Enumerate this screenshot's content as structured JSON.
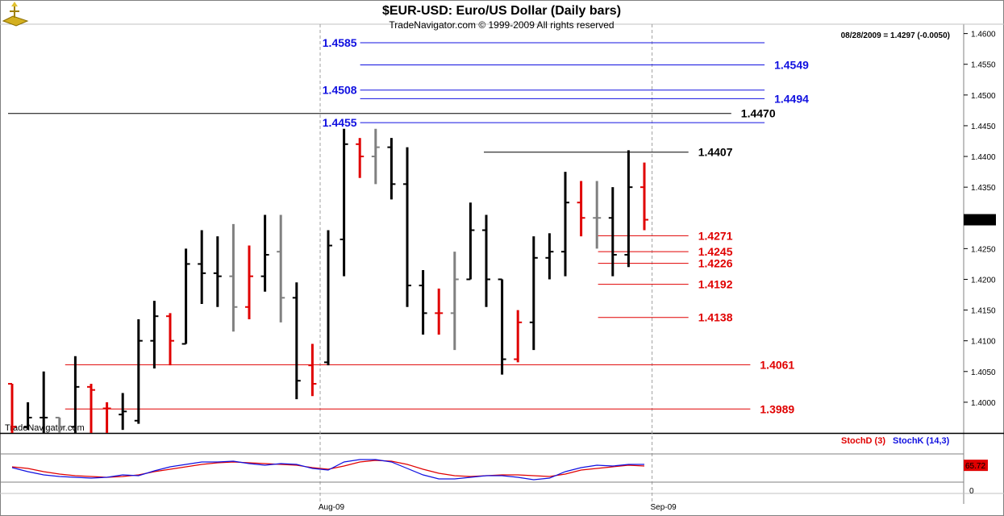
{
  "header": {
    "title": "$EUR-USD:  Euro/US Dollar  (Daily bars)",
    "subtitle": "TradeNavigator.com © 1999-2009 All rights reserved",
    "last_info": "08/28/2009 = 1.4297 (-0.0050)",
    "watermark": "TradeNavigator.com",
    "logo_icon": "gold-logo-icon"
  },
  "colors": {
    "up": "#000000",
    "down": "#e00000",
    "unch": "#808080",
    "blue": "#1010e0",
    "red": "#e00000",
    "black": "#000000",
    "stochD": "#e00000",
    "stochK": "#1010e0"
  },
  "chart_data": {
    "type": "bar",
    "ylim": [
      1.395,
      1.461
    ],
    "yticks": [
      "1.4000",
      "1.4050",
      "1.4100",
      "1.4150",
      "1.4200",
      "1.4250",
      "1.4300",
      "1.4350",
      "1.4400",
      "1.4450",
      "1.4500",
      "1.4550",
      "1.4600"
    ],
    "xticks": [
      {
        "label": "Aug-09",
        "index": 20
      },
      {
        "label": "Sep-09",
        "index": 41
      }
    ],
    "current_price": "1.4297",
    "bars": [
      {
        "o": 1.403,
        "h": 1.403,
        "l": 1.395,
        "c": 1.396,
        "col": "down"
      },
      {
        "o": 1.396,
        "h": 1.4,
        "l": 1.3955,
        "c": 1.3975,
        "col": "up"
      },
      {
        "o": 1.3975,
        "h": 1.405,
        "l": 1.395,
        "c": 1.3975,
        "col": "up"
      },
      {
        "o": 1.3975,
        "h": 1.3975,
        "l": 1.395,
        "c": 1.396,
        "col": "unch"
      },
      {
        "o": 1.396,
        "h": 1.4075,
        "l": 1.395,
        "c": 1.4025,
        "col": "up"
      },
      {
        "o": 1.4025,
        "h": 1.403,
        "l": 1.395,
        "c": 1.402,
        "col": "down"
      },
      {
        "o": 1.399,
        "h": 1.4,
        "l": 1.395,
        "c": 1.399,
        "col": "down"
      },
      {
        "o": 1.398,
        "h": 1.4015,
        "l": 1.3955,
        "c": 1.3985,
        "col": "up"
      },
      {
        "o": 1.397,
        "h": 1.4135,
        "l": 1.3965,
        "c": 1.41,
        "col": "up"
      },
      {
        "o": 1.41,
        "h": 1.4165,
        "l": 1.4055,
        "c": 1.414,
        "col": "up"
      },
      {
        "o": 1.414,
        "h": 1.4145,
        "l": 1.406,
        "c": 1.41,
        "col": "down"
      },
      {
        "o": 1.4095,
        "h": 1.425,
        "l": 1.4095,
        "c": 1.4225,
        "col": "up"
      },
      {
        "o": 1.4225,
        "h": 1.428,
        "l": 1.416,
        "c": 1.421,
        "col": "up"
      },
      {
        "o": 1.421,
        "h": 1.427,
        "l": 1.4155,
        "c": 1.4205,
        "col": "up"
      },
      {
        "o": 1.4205,
        "h": 1.429,
        "l": 1.4115,
        "c": 1.4155,
        "col": "unch"
      },
      {
        "o": 1.4155,
        "h": 1.4255,
        "l": 1.4135,
        "c": 1.4205,
        "col": "down"
      },
      {
        "o": 1.4205,
        "h": 1.4305,
        "l": 1.418,
        "c": 1.424,
        "col": "up"
      },
      {
        "o": 1.4245,
        "h": 1.4305,
        "l": 1.413,
        "c": 1.417,
        "col": "unch"
      },
      {
        "o": 1.417,
        "h": 1.4195,
        "l": 1.4005,
        "c": 1.4035,
        "col": "up"
      },
      {
        "o": 1.406,
        "h": 1.4095,
        "l": 1.401,
        "c": 1.403,
        "col": "down"
      },
      {
        "o": 1.4065,
        "h": 1.428,
        "l": 1.406,
        "c": 1.4255,
        "col": "up"
      },
      {
        "o": 1.4265,
        "h": 1.4445,
        "l": 1.4205,
        "c": 1.442,
        "col": "up"
      },
      {
        "o": 1.442,
        "h": 1.443,
        "l": 1.4365,
        "c": 1.44,
        "col": "down"
      },
      {
        "o": 1.44,
        "h": 1.4445,
        "l": 1.4355,
        "c": 1.4415,
        "col": "unch"
      },
      {
        "o": 1.4415,
        "h": 1.443,
        "l": 1.433,
        "c": 1.4355,
        "col": "up"
      },
      {
        "o": 1.4355,
        "h": 1.4415,
        "l": 1.4155,
        "c": 1.419,
        "col": "up"
      },
      {
        "o": 1.419,
        "h": 1.4215,
        "l": 1.411,
        "c": 1.4145,
        "col": "up"
      },
      {
        "o": 1.4145,
        "h": 1.4185,
        "l": 1.411,
        "c": 1.4145,
        "col": "down"
      },
      {
        "o": 1.4145,
        "h": 1.4245,
        "l": 1.4085,
        "c": 1.42,
        "col": "unch"
      },
      {
        "o": 1.42,
        "h": 1.4325,
        "l": 1.42,
        "c": 1.428,
        "col": "up"
      },
      {
        "o": 1.428,
        "h": 1.4305,
        "l": 1.4155,
        "c": 1.42,
        "col": "up"
      },
      {
        "o": 1.42,
        "h": 1.42,
        "l": 1.4045,
        "c": 1.407,
        "col": "up"
      },
      {
        "o": 1.407,
        "h": 1.415,
        "l": 1.4065,
        "c": 1.413,
        "col": "down"
      },
      {
        "o": 1.413,
        "h": 1.427,
        "l": 1.4085,
        "c": 1.4235,
        "col": "up"
      },
      {
        "o": 1.4235,
        "h": 1.4275,
        "l": 1.42,
        "c": 1.4245,
        "col": "up"
      },
      {
        "o": 1.4245,
        "h": 1.4375,
        "l": 1.4205,
        "c": 1.4325,
        "col": "up"
      },
      {
        "o": 1.4325,
        "h": 1.436,
        "l": 1.427,
        "c": 1.43,
        "col": "down"
      },
      {
        "o": 1.43,
        "h": 1.436,
        "l": 1.425,
        "c": 1.43,
        "col": "unch"
      },
      {
        "o": 1.43,
        "h": 1.435,
        "l": 1.4205,
        "c": 1.424,
        "col": "up"
      },
      {
        "o": 1.424,
        "h": 1.441,
        "l": 1.422,
        "c": 1.435,
        "col": "up"
      },
      {
        "o": 1.435,
        "h": 1.439,
        "l": 1.428,
        "c": 1.4297,
        "col": "down"
      }
    ],
    "levels": [
      {
        "value": "1.4585",
        "color": "blue",
        "x1": 0.37,
        "x2": 0.795,
        "label_side": "left"
      },
      {
        "value": "1.4549",
        "color": "blue",
        "x1": 0.37,
        "x2": 0.795,
        "label_side": "right"
      },
      {
        "value": "1.4508",
        "color": "blue",
        "x1": 0.37,
        "x2": 0.795,
        "label_side": "left"
      },
      {
        "value": "1.4494",
        "color": "blue",
        "x1": 0.37,
        "x2": 0.795,
        "label_side": "right"
      },
      {
        "value": "1.4470",
        "color": "black",
        "x1": 0.0,
        "x2": 0.76,
        "label_side": "right"
      },
      {
        "value": "1.4455",
        "color": "blue",
        "x1": 0.37,
        "x2": 0.795,
        "label_side": "left"
      },
      {
        "value": "1.4407",
        "color": "black",
        "x1": 0.5,
        "x2": 0.715,
        "label_side": "right"
      },
      {
        "value": "1.4271",
        "color": "red",
        "x1": 0.62,
        "x2": 0.715,
        "label_side": "right"
      },
      {
        "value": "1.4245",
        "color": "red",
        "x1": 0.62,
        "x2": 0.715,
        "label_side": "right"
      },
      {
        "value": "1.4226",
        "color": "red",
        "x1": 0.62,
        "x2": 0.715,
        "label_side": "right"
      },
      {
        "value": "1.4192",
        "color": "red",
        "x1": 0.62,
        "x2": 0.715,
        "label_side": "right"
      },
      {
        "value": "1.4138",
        "color": "red",
        "x1": 0.62,
        "x2": 0.715,
        "label_side": "right"
      },
      {
        "value": "1.4061",
        "color": "red",
        "x1": 0.06,
        "x2": 0.78,
        "label_side": "right"
      },
      {
        "value": "1.3989",
        "color": "red",
        "x1": 0.06,
        "x2": 0.78,
        "label_side": "right"
      }
    ],
    "stochastic": {
      "legend_d": "StochD (3)",
      "legend_k": "StochK (14,3)",
      "current": "65.72",
      "zero_label": "0",
      "d": [
        62,
        58,
        50,
        44,
        40,
        38,
        36,
        38,
        42,
        50,
        56,
        62,
        68,
        72,
        74,
        72,
        70,
        68,
        66,
        60,
        56,
        64,
        74,
        78,
        76,
        68,
        56,
        46,
        40,
        38,
        40,
        42,
        42,
        40,
        38,
        44,
        54,
        58,
        62,
        66,
        64
      ],
      "k": [
        60,
        50,
        42,
        38,
        36,
        34,
        36,
        42,
        40,
        52,
        62,
        68,
        74,
        74,
        76,
        70,
        66,
        70,
        68,
        58,
        54,
        74,
        80,
        80,
        74,
        58,
        42,
        32,
        32,
        36,
        40,
        40,
        36,
        30,
        34,
        50,
        60,
        66,
        64,
        68,
        68
      ]
    }
  }
}
